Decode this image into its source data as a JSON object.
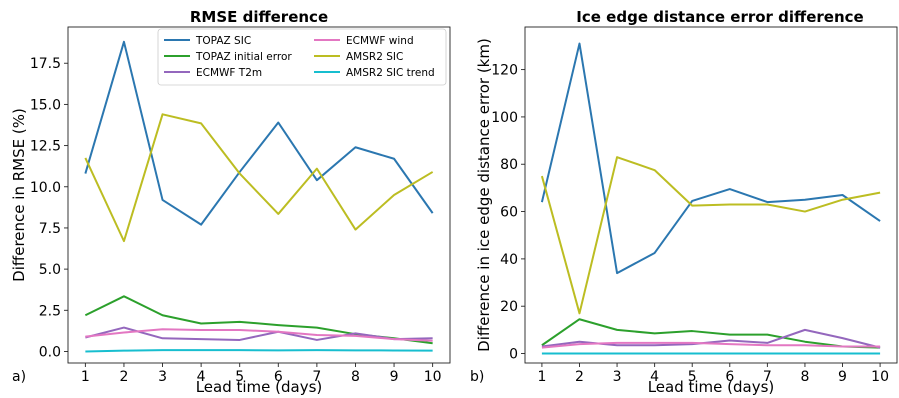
{
  "chart_data": [
    {
      "type": "line",
      "panel_label": "a)",
      "title": "RMSE difference",
      "xlabel": "Lead time (days)",
      "ylabel": "Difference in RMSE (%)",
      "x": [
        1,
        2,
        3,
        4,
        5,
        6,
        7,
        8,
        9,
        10
      ],
      "xticks": [
        "1",
        "2",
        "3",
        "4",
        "5",
        "6",
        "7",
        "8",
        "9",
        "10"
      ],
      "xlim": [
        0.55,
        10.45
      ],
      "ylim": [
        -0.7,
        19.7
      ],
      "yticks": [
        0.0,
        2.5,
        5.0,
        7.5,
        10.0,
        12.5,
        15.0,
        17.5
      ],
      "ytick_labels": [
        "0.0",
        "2.5",
        "5.0",
        "7.5",
        "10.0",
        "12.5",
        "15.0",
        "17.5"
      ],
      "grid": false,
      "legend": {
        "placement": "top",
        "columns": 2
      },
      "series": [
        {
          "name": "TOPAZ SIC",
          "color": "#2b77b0",
          "values": [
            10.8,
            18.8,
            9.2,
            7.7,
            10.9,
            13.9,
            10.4,
            12.4,
            11.7,
            8.4
          ]
        },
        {
          "name": "TOPAZ initial error",
          "color": "#2ca02c",
          "values": [
            2.2,
            3.35,
            2.2,
            1.7,
            1.8,
            1.6,
            1.45,
            1.05,
            0.8,
            0.5
          ]
        },
        {
          "name": "ECMWF T2m",
          "color": "#9467bd",
          "values": [
            0.85,
            1.45,
            0.8,
            0.75,
            0.7,
            1.2,
            0.7,
            1.1,
            0.75,
            0.8
          ]
        },
        {
          "name": "ECMWF wind",
          "color": "#e377c2",
          "values": [
            0.9,
            1.15,
            1.35,
            1.3,
            1.3,
            1.2,
            1.0,
            0.95,
            0.75,
            0.65
          ]
        },
        {
          "name": "AMSR2 SIC",
          "color": "#bcbd22",
          "values": [
            11.75,
            6.7,
            14.4,
            13.85,
            10.8,
            8.35,
            11.1,
            7.4,
            9.5,
            10.9
          ]
        },
        {
          "name": "AMSR2 SIC trend",
          "color": "#17becf",
          "values": [
            0.0,
            0.05,
            0.08,
            0.08,
            0.08,
            0.07,
            0.08,
            0.07,
            0.06,
            0.05
          ]
        }
      ]
    },
    {
      "type": "line",
      "panel_label": "b)",
      "title": "Ice edge distance error difference",
      "xlabel": "Lead time (days)",
      "ylabel": "Difference in ice edge distance error (km)",
      "x": [
        1,
        2,
        3,
        4,
        5,
        6,
        7,
        8,
        9,
        10
      ],
      "xticks": [
        "1",
        "2",
        "3",
        "4",
        "5",
        "6",
        "7",
        "8",
        "9",
        "10"
      ],
      "xlim": [
        0.55,
        10.45
      ],
      "ylim": [
        -4,
        138
      ],
      "yticks": [
        0,
        20,
        40,
        60,
        80,
        100,
        120
      ],
      "ytick_labels": [
        "0",
        "20",
        "40",
        "60",
        "80",
        "100",
        "120"
      ],
      "grid": false,
      "series": [
        {
          "name": "TOPAZ SIC",
          "color": "#2b77b0",
          "values": [
            64,
            131,
            34,
            42.5,
            64.5,
            69.5,
            64,
            65,
            67,
            56
          ]
        },
        {
          "name": "TOPAZ initial error",
          "color": "#2ca02c",
          "values": [
            3.5,
            14.5,
            10,
            8.5,
            9.5,
            8,
            8,
            5,
            3,
            2.5
          ]
        },
        {
          "name": "ECMWF T2m",
          "color": "#9467bd",
          "values": [
            3,
            5,
            3.5,
            3.5,
            4,
            5.5,
            4.5,
            10,
            6.5,
            2.5
          ]
        },
        {
          "name": "ECMWF wind",
          "color": "#e377c2",
          "values": [
            2.5,
            4,
            4.5,
            4.5,
            4.5,
            4,
            3.5,
            3.5,
            3,
            3
          ]
        },
        {
          "name": "AMSR2 SIC",
          "color": "#bcbd22",
          "values": [
            75,
            17,
            83,
            77.5,
            62.5,
            63,
            63,
            60,
            65,
            68
          ]
        },
        {
          "name": "AMSR2 SIC trend",
          "color": "#17becf",
          "values": [
            0,
            0,
            0,
            0,
            0,
            0,
            0,
            0,
            0,
            0
          ]
        }
      ]
    }
  ]
}
